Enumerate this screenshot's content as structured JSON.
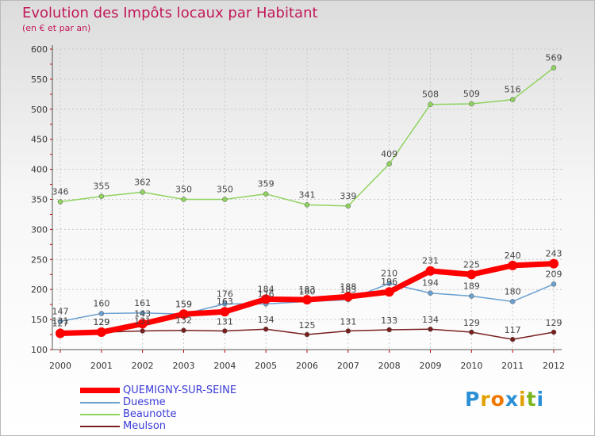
{
  "header": {
    "title": "Evolution des Impôts locaux par Habitant",
    "subtitle": "(en € et par an)"
  },
  "brand": {
    "name": "Proxiti"
  },
  "chart_data": {
    "type": "line",
    "title": "Evolution des Impôts locaux par Habitant",
    "subtitle": "(en € et par an)",
    "xlabel": "",
    "ylabel": "",
    "x": [
      "2000",
      "2001",
      "2002",
      "2003",
      "2004",
      "2005",
      "2006",
      "2007",
      "2008",
      "2009",
      "2010",
      "2011",
      "2012"
    ],
    "ylim": [
      100,
      600
    ],
    "yticks": [
      100,
      150,
      200,
      250,
      300,
      350,
      400,
      450,
      500,
      550,
      600
    ],
    "grid": true,
    "legend_position": "bottom-left",
    "series": [
      {
        "name": "QUEMIGNY-SUR-SEINE",
        "color": "#ff0000",
        "values": [
          127,
          129,
          143,
          159,
          163,
          184,
          183,
          188,
          196,
          231,
          225,
          240,
          243
        ]
      },
      {
        "name": "Duesme",
        "color": "#6aa0d0",
        "values": [
          147,
          160,
          161,
          159,
          176,
          176,
          180,
          183,
          210,
          194,
          189,
          180,
          209
        ]
      },
      {
        "name": "Beaunotte",
        "color": "#8fd35f",
        "values": [
          346,
          355,
          362,
          350,
          350,
          359,
          341,
          339,
          409,
          508,
          509,
          516,
          569
        ]
      },
      {
        "name": "Meulson",
        "color": "#7a1f1f",
        "values": [
          131,
          129,
          131,
          132,
          131,
          134,
          125,
          131,
          133,
          134,
          129,
          117,
          129
        ]
      }
    ]
  }
}
